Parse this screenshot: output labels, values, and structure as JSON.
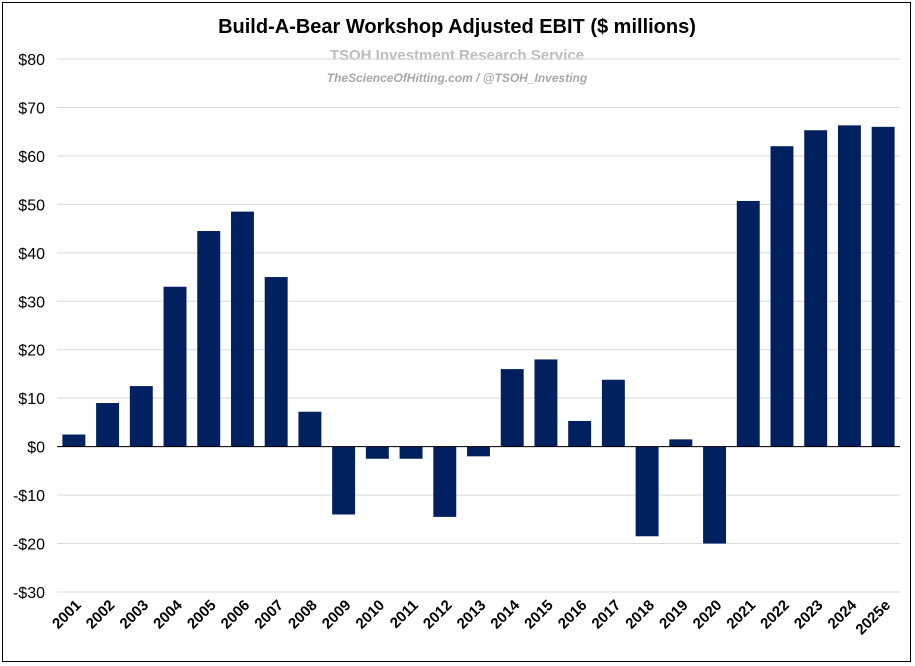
{
  "chart_data": {
    "type": "bar",
    "title": "Build-A-Bear Workshop Adjusted EBIT ($ millions)",
    "watermark": {
      "line1": "TSOH Investment Research Service",
      "line2": "TheScienceOfHitting.com / @TSOH_Investing"
    },
    "categories": [
      "2001",
      "2002",
      "2003",
      "2004",
      "2005",
      "2006",
      "2007",
      "2008",
      "2009",
      "2010",
      "2011",
      "2012",
      "2013",
      "2014",
      "2015",
      "2016",
      "2017",
      "2018",
      "2019",
      "2020",
      "2021",
      "2022",
      "2023",
      "2024",
      "2025e"
    ],
    "values": [
      2.5,
      9.0,
      12.5,
      33.0,
      44.5,
      48.5,
      35.0,
      7.2,
      -14.0,
      -2.5,
      -2.5,
      -14.5,
      -2.0,
      16.0,
      18.0,
      5.3,
      13.8,
      -18.5,
      1.5,
      -20.0,
      50.7,
      62.0,
      65.3,
      66.3,
      66.0
    ],
    "ylim": [
      -30,
      80
    ],
    "yticks": [
      80,
      70,
      60,
      50,
      40,
      30,
      20,
      10,
      0,
      -10,
      -20,
      -30
    ],
    "ytick_labels": [
      "$80",
      "$70",
      "$60",
      "$50",
      "$40",
      "$30",
      "$20",
      "$10",
      "$0",
      "-$10",
      "-$20",
      "-$30"
    ],
    "bar_color": "#002060",
    "grid": true,
    "xlabel": "",
    "ylabel": ""
  }
}
